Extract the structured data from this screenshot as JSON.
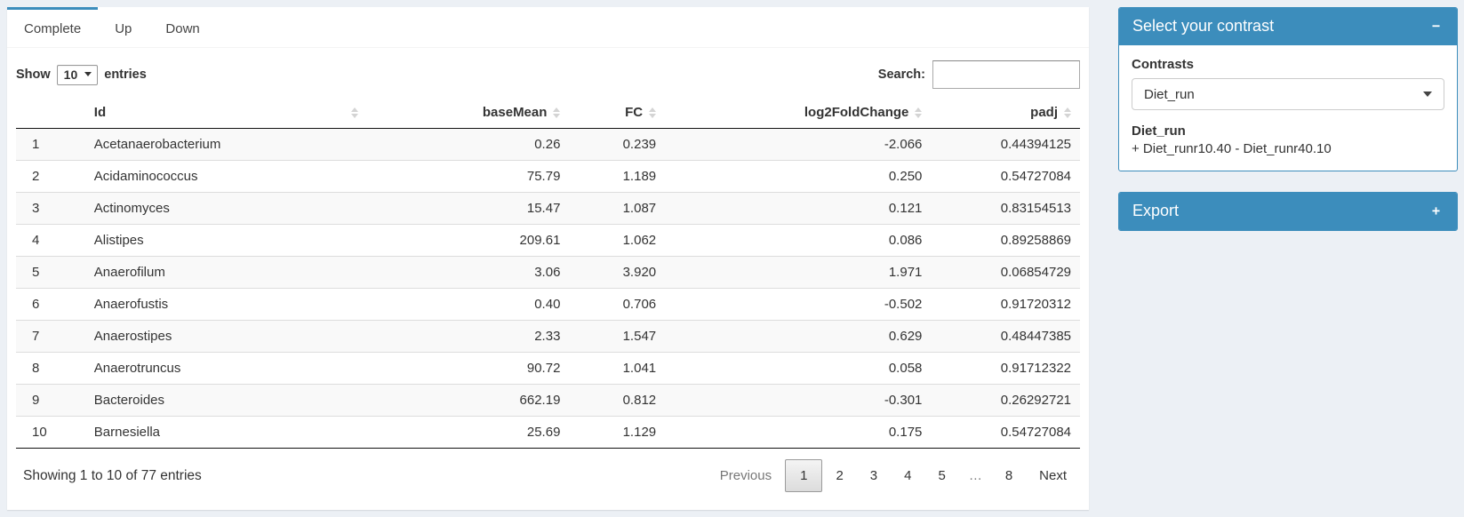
{
  "colors": {
    "primary": "#3c8dbc",
    "page_background": "#ecf0f5"
  },
  "tabs": [
    {
      "label": "Complete",
      "active": true
    },
    {
      "label": "Up",
      "active": false
    },
    {
      "label": "Down",
      "active": false
    }
  ],
  "length_menu": {
    "label_before": "Show",
    "value": "10",
    "label_after": "entries"
  },
  "search": {
    "label": "Search:",
    "value": ""
  },
  "table": {
    "headers": [
      {
        "label": "",
        "sortable": false,
        "align": "left"
      },
      {
        "label": "Id",
        "sortable": true,
        "align": "left"
      },
      {
        "label": "baseMean",
        "sortable": true,
        "align": "right"
      },
      {
        "label": "FC",
        "sortable": true,
        "align": "right"
      },
      {
        "label": "log2FoldChange",
        "sortable": true,
        "align": "right"
      },
      {
        "label": "padj",
        "sortable": true,
        "align": "right"
      }
    ],
    "rows": [
      [
        "1",
        "Acetanaerobacterium",
        "0.26",
        "0.239",
        "-2.066",
        "0.44394125"
      ],
      [
        "2",
        "Acidaminococcus",
        "75.79",
        "1.189",
        "0.250",
        "0.54727084"
      ],
      [
        "3",
        "Actinomyces",
        "15.47",
        "1.087",
        "0.121",
        "0.83154513"
      ],
      [
        "4",
        "Alistipes",
        "209.61",
        "1.062",
        "0.086",
        "0.89258869"
      ],
      [
        "5",
        "Anaerofilum",
        "3.06",
        "3.920",
        "1.971",
        "0.06854729"
      ],
      [
        "6",
        "Anaerofustis",
        "0.40",
        "0.706",
        "-0.502",
        "0.91720312"
      ],
      [
        "7",
        "Anaerostipes",
        "2.33",
        "1.547",
        "0.629",
        "0.48447385"
      ],
      [
        "8",
        "Anaerotruncus",
        "90.72",
        "1.041",
        "0.058",
        "0.91712322"
      ],
      [
        "9",
        "Bacteroides",
        "662.19",
        "0.812",
        "-0.301",
        "0.26292721"
      ],
      [
        "10",
        "Barnesiella",
        "25.69",
        "1.129",
        "0.175",
        "0.54727084"
      ]
    ]
  },
  "footer": {
    "info": "Showing 1 to 10 of 77 entries",
    "pagination": [
      {
        "label": "Previous",
        "state": "disabled"
      },
      {
        "label": "1",
        "state": "active"
      },
      {
        "label": "2",
        "state": "normal"
      },
      {
        "label": "3",
        "state": "normal"
      },
      {
        "label": "4",
        "state": "normal"
      },
      {
        "label": "5",
        "state": "normal"
      },
      {
        "label": "…",
        "state": "ellipsis"
      },
      {
        "label": "8",
        "state": "normal"
      },
      {
        "label": "Next",
        "state": "normal"
      }
    ]
  },
  "contrast_box": {
    "title": "Select your contrast",
    "collapse_icon": "−",
    "contrasts_label": "Contrasts",
    "selected_contrast": "Diet_run",
    "contrast_name": "Diet_run",
    "contrast_formula": "+ Diet_runr10.40 - Diet_runr40.10"
  },
  "export_box": {
    "title": "Export",
    "collapse_icon": "+"
  }
}
